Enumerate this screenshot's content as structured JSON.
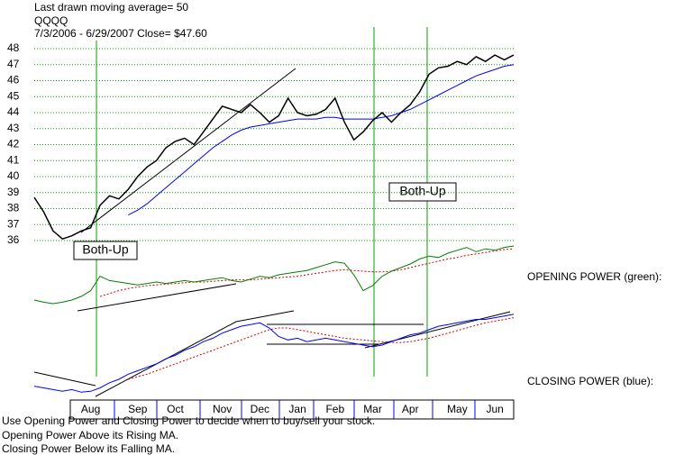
{
  "chart_data": [
    {
      "type": "line",
      "note": "Last drawn moving average= 50",
      "title": "QQQQ",
      "subtitle": "7/3/2006 - 6/29/2007   Close= $47.60",
      "annotations": [
        "Both-Up",
        "Both-Up"
      ],
      "notes": [
        "Use Opening Power and Closing Power to decide when to buy/sell your stock.",
        "Opening Power Above its Rising MA.",
        "Closing Power Below its Falling MA."
      ],
      "categories": [
        null,
        null,
        null,
        null,
        null,
        null,
        "Aug",
        null,
        null,
        null,
        null,
        "Sep",
        null,
        null,
        null,
        "Oct",
        null,
        null,
        null,
        null,
        "Nov",
        null,
        null,
        null,
        "Dec",
        null,
        null,
        null,
        "Jan",
        null,
        null,
        null,
        "Feb",
        null,
        null,
        null,
        "Mar",
        null,
        null,
        null,
        "Apr",
        null,
        null,
        null,
        null,
        "May",
        null,
        null,
        null,
        "Jun",
        null,
        null
      ],
      "values": [
        38.7,
        37.8,
        36.6,
        36.1,
        36.3,
        36.6,
        36.8,
        38.2,
        38.8,
        38.6,
        39.2,
        40.0,
        40.6,
        41.0,
        41.8,
        42.2,
        42.4,
        42.0,
        42.8,
        43.6,
        44.4,
        44.2,
        44.0,
        44.5,
        44.0,
        43.4,
        43.8,
        44.9,
        44.0,
        43.8,
        43.9,
        44.2,
        44.9,
        43.4,
        42.3,
        42.8,
        43.5,
        44.0,
        43.4,
        44.0,
        44.5,
        45.3,
        46.4,
        46.8,
        46.9,
        47.2,
        47.0,
        47.5,
        47.2,
        47.6,
        47.3,
        47.6
      ],
      "color": "#000000",
      "ma_values": [
        null,
        null,
        null,
        null,
        null,
        null,
        null,
        null,
        null,
        null,
        37.6,
        37.9,
        38.3,
        38.8,
        39.3,
        39.8,
        40.3,
        40.8,
        41.3,
        41.8,
        42.2,
        42.6,
        42.9,
        43.1,
        43.2,
        43.3,
        43.4,
        43.5,
        43.6,
        43.6,
        43.6,
        43.7,
        43.7,
        43.6,
        43.6,
        43.6,
        43.6,
        43.7,
        43.8,
        44.0,
        44.2,
        44.5,
        44.8,
        45.1,
        45.4,
        45.7,
        46.0,
        46.3,
        46.5,
        46.7,
        46.9,
        47.0
      ],
      "ma_color": "#0000ff",
      "ylim": [
        35,
        48.5
      ],
      "yticks": [
        36,
        37,
        38,
        39,
        40,
        41,
        42,
        43,
        44,
        45,
        46,
        47,
        48
      ],
      "grid": true,
      "grid_color": "#00a000"
    },
    {
      "type": "line",
      "title": "OPENING POWER (green):",
      "values": [
        15,
        12,
        10,
        12,
        15,
        20,
        28,
        48,
        42,
        40,
        38,
        36,
        38,
        40,
        38,
        40,
        42,
        40,
        42,
        44,
        46,
        42,
        40,
        44,
        48,
        46,
        50,
        52,
        54,
        56,
        60,
        64,
        68,
        66,
        50,
        28,
        35,
        48,
        55,
        60,
        65,
        72,
        76,
        74,
        80,
        84,
        88,
        82,
        86,
        84,
        88,
        90
      ],
      "color": "#008000",
      "ma_values": [
        null,
        null,
        null,
        null,
        null,
        null,
        null,
        20,
        24,
        28,
        31,
        33,
        35,
        36,
        37,
        38,
        39,
        40,
        40,
        41,
        42,
        43,
        43,
        43,
        44,
        45,
        46,
        47,
        48,
        50,
        52,
        54,
        56,
        57,
        56,
        55,
        54,
        54,
        55,
        57,
        60,
        63,
        66,
        69,
        72,
        74,
        77,
        79,
        81,
        83,
        85,
        86
      ],
      "ma_color": "#d00000",
      "ylim": [
        0,
        100
      ]
    },
    {
      "type": "line",
      "title": "CLOSING POWER (blue):",
      "values": [
        12,
        10,
        8,
        6,
        8,
        5,
        6,
        10,
        16,
        20,
        26,
        30,
        34,
        38,
        44,
        48,
        54,
        58,
        64,
        68,
        74,
        78,
        82,
        84,
        86,
        80,
        70,
        66,
        68,
        64,
        66,
        68,
        66,
        64,
        62,
        60,
        58,
        60,
        64,
        68,
        72,
        74,
        78,
        82,
        84,
        86,
        88,
        90,
        90,
        92,
        94,
        96
      ],
      "color": "#0000ff",
      "ma_values": [
        null,
        null,
        null,
        null,
        null,
        null,
        null,
        null,
        null,
        null,
        20,
        23,
        26,
        30,
        34,
        38,
        42,
        46,
        50,
        54,
        58,
        62,
        66,
        70,
        74,
        78,
        80,
        80,
        78,
        76,
        74,
        72,
        70,
        68,
        67,
        66,
        65,
        64,
        63,
        63,
        64,
        66,
        68,
        71,
        74,
        77,
        80,
        83,
        86,
        88,
        90,
        92
      ],
      "ma_color": "#d00000",
      "ylim": [
        0,
        100
      ]
    }
  ]
}
